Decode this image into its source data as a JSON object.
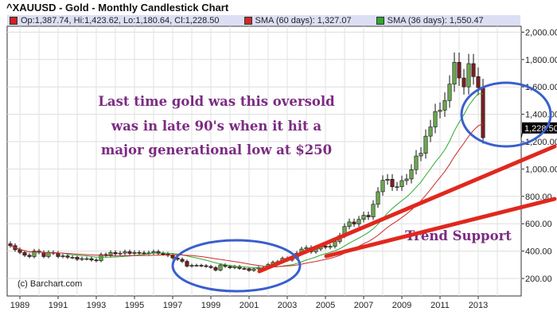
{
  "title": "^XAUUSD - Gold - Monthly Candlestick Chart",
  "legend": {
    "ohlc": "Op:1,387.74, Hi:1,423.62, Lo:1,180.64, Cl:1,228.50",
    "sma60": "SMA (60 days): 1,327.07",
    "sma36": "SMA (36 days): 1,550.47"
  },
  "colors": {
    "ohlc": "#d42020",
    "sma60": "#cc2a2a",
    "sma36": "#2fa82f",
    "up": "#6aa84f",
    "down": "#7a1f1f",
    "annotation": "#7b2c82",
    "trendline": "#e0281e",
    "ellipse": "#3a5fcd"
  },
  "last_price_label": "1,228.50",
  "credit": "(c) Barchart.com",
  "annotation": {
    "lines": [
      "Last time gold was this oversold",
      "was in late 90's when it hit a",
      "major generational low at $250"
    ],
    "trend": "Trend Support"
  },
  "chart_data": {
    "type": "candlestick",
    "title": "^XAUUSD - Gold - Monthly Candlestick Chart",
    "x_ticks": [
      "1989",
      "1991",
      "1993",
      "1995",
      "1997",
      "1999",
      "2001",
      "2003",
      "2005",
      "2007",
      "2009",
      "2011",
      "2013"
    ],
    "y_ticks": [
      "200.00",
      "400.00",
      "600.00",
      "800.00",
      "1,000.00",
      "1,200.00",
      "1,400.00",
      "1,600.00",
      "1,800.00",
      "2,000.00"
    ],
    "ylim": [
      80,
      2050
    ],
    "grid": true,
    "legend_position": "top",
    "x": [
      1988.5,
      1988.75,
      1989,
      1989.25,
      1989.5,
      1989.75,
      1990,
      1990.25,
      1990.5,
      1990.75,
      1991,
      1991.25,
      1991.5,
      1991.75,
      1992,
      1992.25,
      1992.5,
      1992.75,
      1993,
      1993.25,
      1993.5,
      1993.75,
      1994,
      1994.25,
      1994.5,
      1994.75,
      1995,
      1995.25,
      1995.5,
      1995.75,
      1996,
      1996.25,
      1996.5,
      1996.75,
      1997,
      1997.25,
      1997.5,
      1997.75,
      1998,
      1998.25,
      1998.5,
      1998.75,
      1999,
      1999.25,
      1999.5,
      1999.75,
      2000,
      2000.25,
      2000.5,
      2000.75,
      2001,
      2001.25,
      2001.5,
      2001.75,
      2002,
      2002.25,
      2002.5,
      2002.75,
      2003,
      2003.25,
      2003.5,
      2003.75,
      2004,
      2004.25,
      2004.5,
      2004.75,
      2005,
      2005.25,
      2005.5,
      2005.75,
      2006,
      2006.25,
      2006.5,
      2006.75,
      2007,
      2007.25,
      2007.5,
      2007.75,
      2008,
      2008.25,
      2008.5,
      2008.75,
      2009,
      2009.25,
      2009.5,
      2009.75,
      2010,
      2010.25,
      2010.5,
      2010.75,
      2011,
      2011.25,
      2011.5,
      2011.75,
      2012,
      2012.25,
      2012.5,
      2012.75,
      2013,
      2013.25
    ],
    "close": [
      440,
      410,
      390,
      370,
      360,
      400,
      390,
      360,
      390,
      385,
      360,
      365,
      355,
      355,
      340,
      345,
      345,
      335,
      330,
      375,
      370,
      390,
      380,
      385,
      395,
      383,
      390,
      387,
      385,
      387,
      396,
      382,
      379,
      369,
      350,
      340,
      325,
      290,
      296,
      296,
      293,
      288,
      280,
      261,
      299,
      288,
      278,
      288,
      273,
      272,
      258,
      270,
      280,
      278,
      302,
      318,
      323,
      347,
      334,
      346,
      385,
      415,
      425,
      395,
      415,
      438,
      428,
      435,
      470,
      513,
      580,
      613,
      598,
      632,
      662,
      650,
      742,
      834,
      917,
      925,
      870,
      870,
      915,
      927,
      995,
      1095,
      1115,
      1240,
      1307,
      1420,
      1430,
      1500,
      1620,
      1780,
      1665,
      1600,
      1770,
      1675,
      1595,
      1228.5
    ]
  }
}
